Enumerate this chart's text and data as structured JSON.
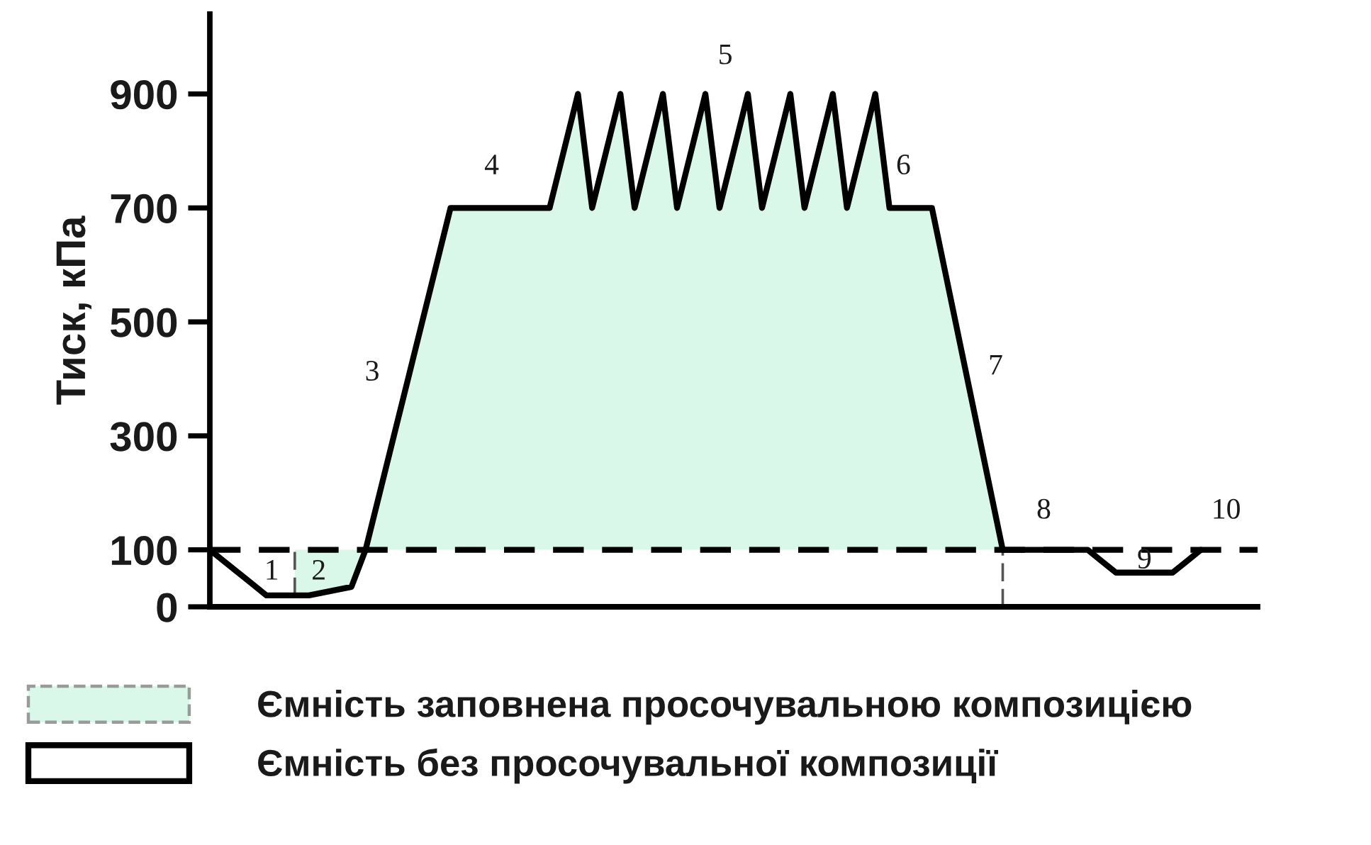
{
  "chart_data": {
    "type": "line",
    "ylabel": "Тиск, кПа",
    "categories": [
      null,
      null,
      null,
      null,
      null,
      null,
      null,
      null,
      null,
      null,
      null,
      null,
      null,
      null,
      null,
      null,
      null,
      null,
      null,
      null,
      null,
      null,
      null,
      null,
      null,
      null,
      null,
      null,
      null,
      null,
      null,
      null,
      null,
      null,
      null,
      null,
      null,
      null,
      null,
      null,
      null,
      null,
      null,
      null,
      null,
      null,
      null,
      null,
      null,
      null,
      null,
      null,
      null,
      null,
      null,
      null,
      null,
      null,
      null,
      null,
      null,
      null,
      null,
      null,
      null,
      null,
      null,
      null,
      null,
      null,
      null,
      null,
      null,
      null,
      null
    ],
    "ylim": [
      0,
      1040
    ],
    "yticks": [
      0,
      100,
      300,
      500,
      700,
      900
    ],
    "tick_labels": "y",
    "legend": "bottom",
    "series": [
      {
        "name": "Ємність заповнена просочувальною композицією",
        "type": "area",
        "color": "#d9f8e9",
        "values": [
          null,
          null,
          null,
          null,
          null,
          null,
          null,
          null,
          null,
          null,
          null,
          null,
          null,
          null,
          null,
          null,
          null,
          null,
          null,
          null,
          null,
          null,
          null,
          null,
          null,
          null,
          null,
          null,
          null,
          null,
          null,
          null,
          null,
          null,
          null,
          null,
          null,
          null,
          null,
          null,
          null,
          null,
          null,
          null,
          null,
          null,
          null,
          null,
          null,
          null,
          null,
          null,
          null,
          null,
          null,
          null,
          null,
          null,
          null,
          null,
          null,
          null,
          null,
          null,
          null,
          null,
          null,
          null,
          null,
          null,
          null,
          null,
          null,
          null,
          null
        ],
        "lower": [
          null,
          null,
          null,
          null,
          null,
          null,
          20,
          20,
          25,
          30,
          35,
          100,
          100,
          100,
          100,
          100,
          100,
          100,
          100,
          100,
          100,
          100,
          100,
          100,
          100,
          100,
          100,
          100,
          100,
          100,
          100,
          100,
          100,
          100,
          100,
          100,
          100,
          100,
          100,
          100,
          100,
          100,
          100,
          100,
          100,
          100,
          100,
          100,
          100,
          100,
          100,
          100,
          100,
          100,
          100,
          100,
          100,
          null,
          null,
          null,
          null,
          null,
          null,
          null,
          null,
          null,
          null,
          null,
          null,
          null,
          null,
          null,
          null,
          null,
          null
        ],
        "upper": [
          null,
          null,
          null,
          null,
          null,
          null,
          100,
          100,
          100,
          100,
          100,
          100,
          200,
          300,
          400,
          500,
          600,
          700,
          700,
          700,
          700,
          700,
          700,
          700,
          700,
          800,
          900,
          700,
          800,
          900,
          700,
          800,
          900,
          700,
          800,
          900,
          700,
          800,
          900,
          700,
          800,
          900,
          700,
          800,
          900,
          700,
          800,
          900,
          700,
          700,
          700,
          700,
          580,
          460,
          340,
          220,
          100,
          null,
          null,
          null,
          null,
          null,
          null,
          null,
          null,
          null,
          null,
          null,
          null,
          null,
          null,
          null,
          null,
          null,
          null
        ]
      },
      {
        "name": "Ємність без просочувальної композиції",
        "color": "#000000",
        "values": [
          100,
          80,
          60,
          40,
          20,
          20,
          20,
          20,
          25,
          30,
          35,
          100,
          200,
          300,
          400,
          500,
          600,
          700,
          700,
          700,
          700,
          700,
          700,
          700,
          700,
          800,
          900,
          700,
          800,
          900,
          700,
          800,
          900,
          700,
          800,
          900,
          700,
          800,
          900,
          700,
          800,
          900,
          700,
          800,
          900,
          700,
          800,
          900,
          700,
          700,
          700,
          700,
          580,
          460,
          340,
          220,
          100,
          100,
          100,
          100,
          100,
          100,
          100,
          80,
          60,
          60,
          60,
          60,
          60,
          80,
          100,
          null,
          null,
          null,
          null
        ],
        "errors": [
          null,
          null,
          null,
          null,
          null,
          null,
          [
            20,
            100
          ],
          null,
          null,
          null,
          null,
          null,
          null,
          null,
          null,
          null,
          null,
          null,
          null,
          null,
          null,
          null,
          null,
          null,
          null,
          null,
          null,
          null,
          null,
          null,
          null,
          null,
          null,
          null,
          null,
          null,
          null,
          null,
          null,
          null,
          null,
          null,
          null,
          null,
          null,
          null,
          null,
          null,
          null,
          null,
          null,
          null,
          null,
          null,
          null,
          null,
          [
            0,
            100
          ],
          null,
          null,
          null,
          null,
          null,
          null,
          null,
          null,
          null,
          null,
          null,
          null,
          null,
          null,
          null,
          null,
          null,
          null
        ]
      }
    ],
    "ref_lines": [
      {
        "axis": "y",
        "value": 100,
        "color": "#000000",
        "line_style": "dashed"
      }
    ],
    "annotations": [
      "1",
      "2",
      "3",
      "4",
      "5",
      "6",
      "7",
      "8",
      "9",
      "10"
    ]
  }
}
